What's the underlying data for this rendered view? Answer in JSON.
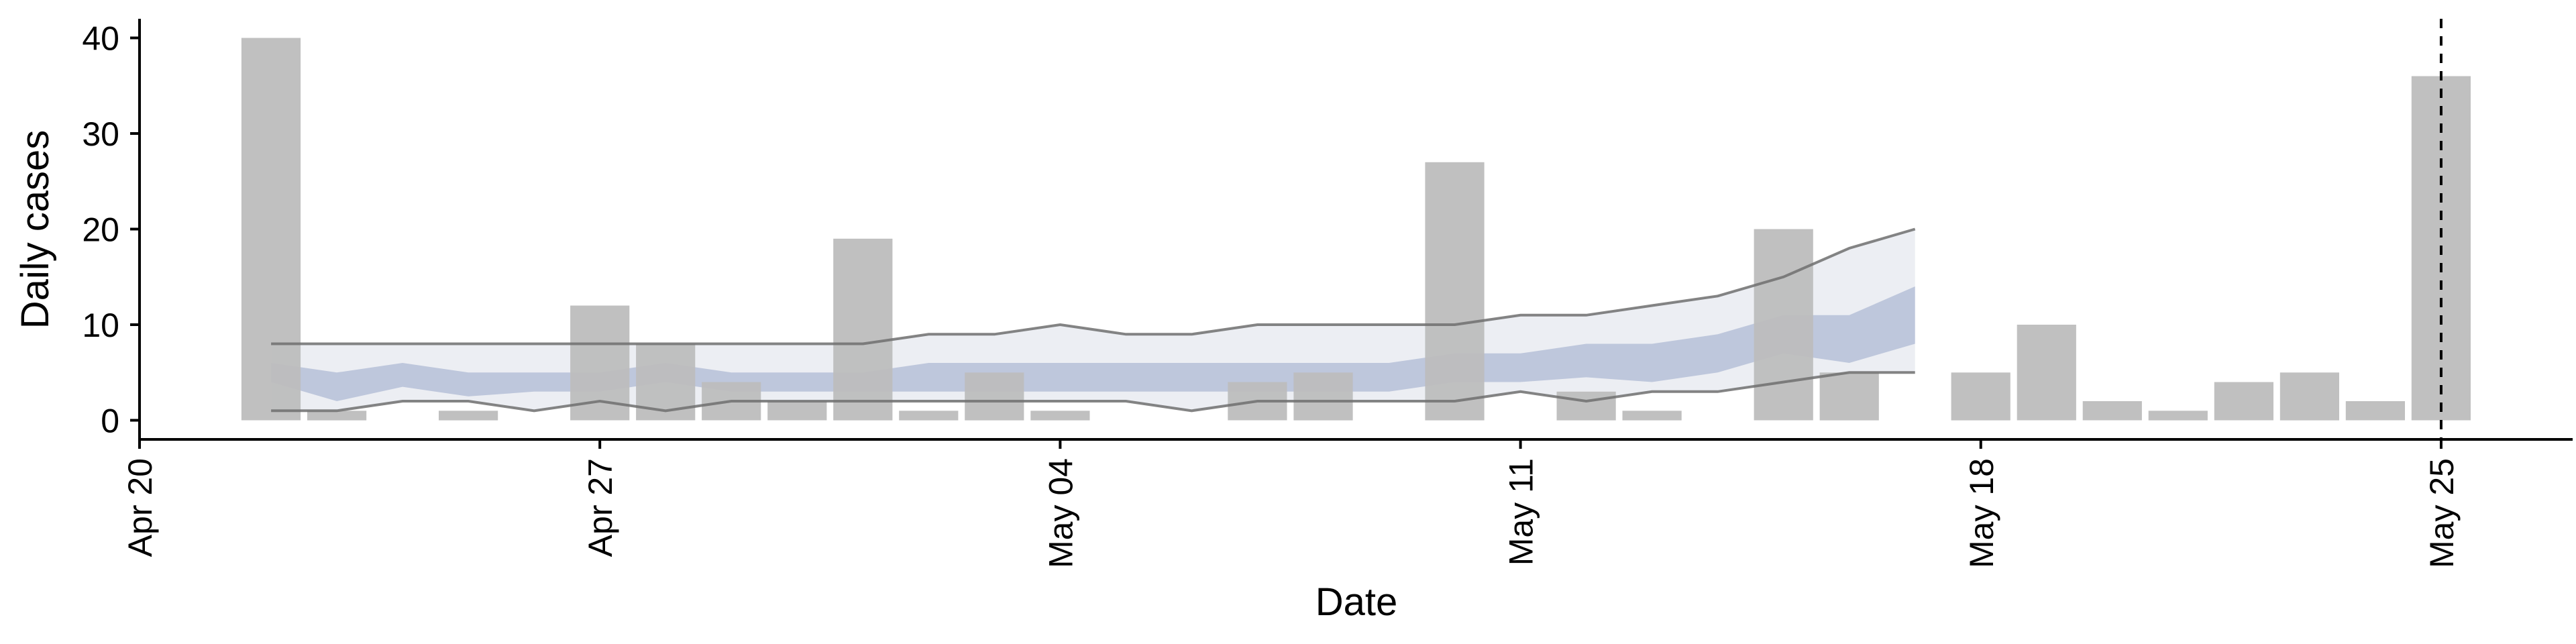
{
  "chart_data": {
    "type": "bar",
    "xlabel": "Date",
    "ylabel": "Daily cases",
    "xlim": [
      "2020-04-20",
      "2020-05-27"
    ],
    "ylim": [
      -2,
      42
    ],
    "x_ticks": [
      "Apr 20",
      "Apr 27",
      "May 04",
      "May 11",
      "May 18",
      "May 25"
    ],
    "x_tick_dates": [
      "2020-04-20",
      "2020-04-27",
      "2020-05-04",
      "2020-05-11",
      "2020-05-18",
      "2020-05-25"
    ],
    "y_ticks": [
      0,
      10,
      20,
      30,
      40
    ],
    "grid": false,
    "colors": {
      "bars": "#bdbdbd",
      "inner_band": "#b3bdd6",
      "outer_band": "#e6e8ef",
      "outer_lines": "#6e6e6e",
      "reference_line": "#000000"
    },
    "series": [
      {
        "type": "bar",
        "x": [
          "2020-04-22",
          "2020-04-23",
          "2020-04-25",
          "2020-04-27",
          "2020-04-28",
          "2020-04-29",
          "2020-04-30",
          "2020-05-01",
          "2020-05-02",
          "2020-05-03",
          "2020-05-04",
          "2020-05-07",
          "2020-05-08",
          "2020-05-10",
          "2020-05-12",
          "2020-05-13",
          "2020-05-15",
          "2020-05-16",
          "2020-05-18",
          "2020-05-19",
          "2020-05-20",
          "2020-05-21",
          "2020-05-22",
          "2020-05-23",
          "2020-05-24",
          "2020-05-25"
        ],
        "values": [
          40,
          1,
          1,
          12,
          8,
          4,
          2,
          19,
          1,
          5,
          1,
          4,
          5,
          27,
          3,
          1,
          20,
          5,
          5,
          10,
          2,
          1,
          4,
          5,
          2,
          36
        ]
      },
      {
        "type": "band",
        "x": [
          "2020-04-22",
          "2020-04-23",
          "2020-04-24",
          "2020-04-25",
          "2020-04-26",
          "2020-04-27",
          "2020-04-28",
          "2020-04-29",
          "2020-04-30",
          "2020-05-01",
          "2020-05-02",
          "2020-05-03",
          "2020-05-04",
          "2020-05-05",
          "2020-05-06",
          "2020-05-07",
          "2020-05-08",
          "2020-05-09",
          "2020-05-10",
          "2020-05-11",
          "2020-05-12",
          "2020-05-13",
          "2020-05-14",
          "2020-05-15",
          "2020-05-16",
          "2020-05-17"
        ],
        "outer_lower": [
          1,
          1,
          2,
          2,
          1,
          2,
          1,
          2,
          2,
          2,
          2,
          2,
          2,
          2,
          1,
          2,
          2,
          2,
          2,
          3,
          2,
          3,
          3,
          4,
          5,
          5
        ],
        "outer_upper": [
          8,
          8,
          8,
          8,
          8,
          8,
          8,
          8,
          8,
          8,
          9,
          9,
          10,
          9,
          9,
          10,
          10,
          10,
          10,
          11,
          11,
          12,
          13,
          15,
          18,
          20
        ],
        "inner_lower": [
          4,
          2,
          3.5,
          2.5,
          3,
          3,
          4,
          3,
          3,
          3,
          3,
          3,
          3,
          3,
          3,
          3,
          3,
          3,
          4,
          4,
          4.5,
          4,
          5,
          7,
          6,
          8
        ],
        "inner_upper": [
          6,
          5,
          6,
          5,
          5,
          5,
          6,
          5,
          5,
          5,
          6,
          6,
          6,
          6,
          6,
          6,
          6,
          6,
          7,
          7,
          8,
          8,
          9,
          11,
          11,
          14
        ]
      }
    ],
    "vline": {
      "x": "2020-05-25",
      "style": "dashed"
    }
  }
}
